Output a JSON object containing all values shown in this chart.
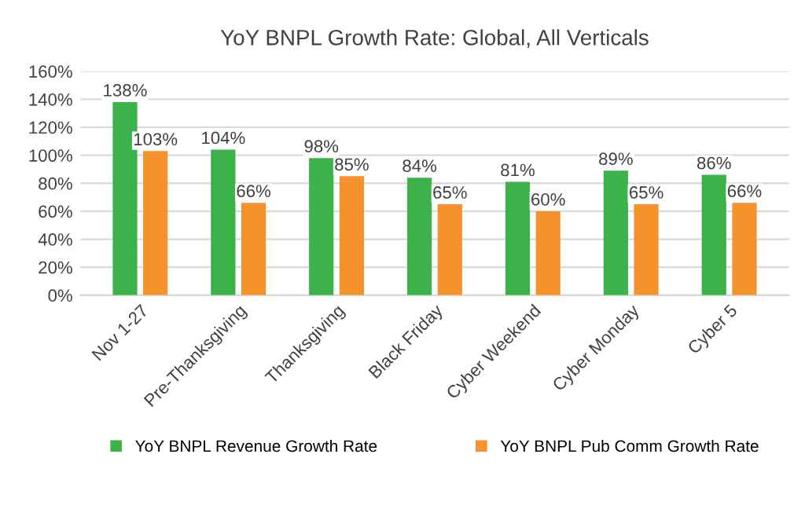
{
  "chart_data": {
    "type": "bar",
    "title": "YoY BNPL Growth Rate: Global, All Verticals",
    "categories": [
      "Nov 1-27",
      "Pre-Thanksgiving",
      "Thanksgiving",
      "Black Friday",
      "Cyber Weekend",
      "Cyber Monday",
      "Cyber 5"
    ],
    "series": [
      {
        "name": "YoY BNPL Revenue Growth Rate",
        "color": "#3cb34a",
        "values": [
          138,
          104,
          98,
          84,
          81,
          89,
          86
        ],
        "value_labels": [
          "138%",
          "104%",
          "98%",
          "84%",
          "81%",
          "89%",
          "86%"
        ]
      },
      {
        "name": "YoY BNPL Pub Comm Growth Rate",
        "color": "#f5922b",
        "values": [
          103,
          66,
          85,
          65,
          60,
          65,
          66
        ],
        "value_labels": [
          "103%",
          "66%",
          "85%",
          "65%",
          "60%",
          "65%",
          "66%"
        ]
      }
    ],
    "ylim": [
      0,
      160
    ],
    "yticks": [
      {
        "value": 0,
        "label": "0%"
      },
      {
        "value": 20,
        "label": "20%"
      },
      {
        "value": 40,
        "label": "40%"
      },
      {
        "value": 60,
        "label": "60%"
      },
      {
        "value": 80,
        "label": "80%"
      },
      {
        "value": 100,
        "label": "100%"
      },
      {
        "value": 120,
        "label": "120%"
      },
      {
        "value": 140,
        "label": "140%"
      },
      {
        "value": 160,
        "label": "160%"
      }
    ],
    "grid": "y",
    "legend": "bottom"
  }
}
